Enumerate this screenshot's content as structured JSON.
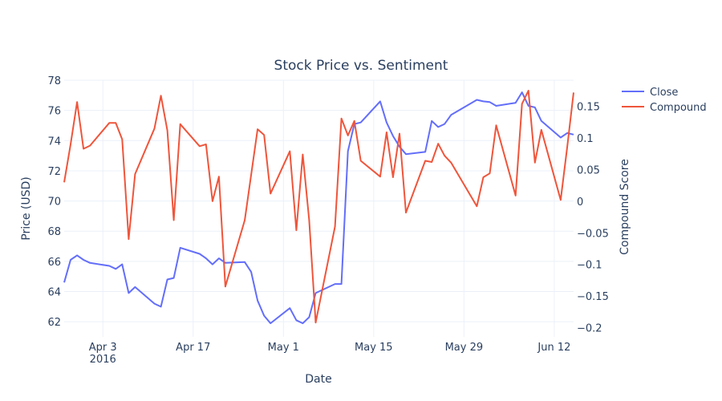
{
  "chart_data": {
    "type": "line",
    "title": "Stock Price vs. Sentiment",
    "xlabel": "Date",
    "ylabel_left": "Price (USD)",
    "ylabel_right": "Compound Score",
    "x_range": [
      "2016-03-28",
      "2016-06-15"
    ],
    "x_ticks": [
      {
        "date": "2016-04-03",
        "label": "Apr 3",
        "sublabel": "2016"
      },
      {
        "date": "2016-04-17",
        "label": "Apr 17",
        "sublabel": ""
      },
      {
        "date": "2016-05-01",
        "label": "May 1",
        "sublabel": ""
      },
      {
        "date": "2016-05-15",
        "label": "May 15",
        "sublabel": ""
      },
      {
        "date": "2016-05-29",
        "label": "May 29",
        "sublabel": ""
      },
      {
        "date": "2016-06-12",
        "label": "Jun 12",
        "sublabel": ""
      }
    ],
    "y_left": {
      "range": [
        61,
        78
      ],
      "ticks": [
        62,
        64,
        66,
        68,
        70,
        72,
        74,
        76,
        78
      ]
    },
    "y_right": {
      "range": [
        -0.2146,
        0.1915
      ],
      "ticks": [
        -0.2,
        -0.15,
        -0.1,
        -0.05,
        0,
        0.05,
        0.1,
        0.15
      ],
      "tick_labels": [
        "−0.2",
        "−0.15",
        "−0.1",
        "−0.05",
        "0",
        "0.05",
        "0.1",
        "0.15"
      ]
    },
    "grid": true,
    "legend_position": "top-right",
    "series": [
      {
        "name": "Close",
        "color": "#636efa",
        "axis": "left",
        "points": [
          [
            "2016-03-28",
            64.6
          ],
          [
            "2016-03-29",
            66.1
          ],
          [
            "2016-03-30",
            66.4
          ],
          [
            "2016-03-31",
            66.1
          ],
          [
            "2016-04-01",
            65.9
          ],
          [
            "2016-04-04",
            65.7
          ],
          [
            "2016-04-05",
            65.5
          ],
          [
            "2016-04-06",
            65.8
          ],
          [
            "2016-04-07",
            63.9
          ],
          [
            "2016-04-08",
            64.3
          ],
          [
            "2016-04-11",
            63.2
          ],
          [
            "2016-04-12",
            63.0
          ],
          [
            "2016-04-13",
            64.8
          ],
          [
            "2016-04-14",
            64.9
          ],
          [
            "2016-04-15",
            66.9
          ],
          [
            "2016-04-18",
            66.5
          ],
          [
            "2016-04-19",
            66.2
          ],
          [
            "2016-04-20",
            65.8
          ],
          [
            "2016-04-21",
            66.2
          ],
          [
            "2016-04-22",
            65.9
          ],
          [
            "2016-04-25",
            65.95
          ],
          [
            "2016-04-26",
            65.3
          ],
          [
            "2016-04-27",
            63.4
          ],
          [
            "2016-04-28",
            62.4
          ],
          [
            "2016-04-29",
            61.9
          ],
          [
            "2016-05-02",
            62.9
          ],
          [
            "2016-05-03",
            62.1
          ],
          [
            "2016-05-04",
            61.9
          ],
          [
            "2016-05-05",
            62.3
          ],
          [
            "2016-05-06",
            63.9
          ],
          [
            "2016-05-09",
            64.5
          ],
          [
            "2016-05-10",
            64.5
          ],
          [
            "2016-05-11",
            73.3
          ],
          [
            "2016-05-12",
            75.1
          ],
          [
            "2016-05-13",
            75.2
          ],
          [
            "2016-05-16",
            76.6
          ],
          [
            "2016-05-17",
            75.2
          ],
          [
            "2016-05-18",
            74.3
          ],
          [
            "2016-05-19",
            73.6
          ],
          [
            "2016-05-20",
            73.1
          ],
          [
            "2016-05-23",
            73.25
          ],
          [
            "2016-05-24",
            75.3
          ],
          [
            "2016-05-25",
            74.9
          ],
          [
            "2016-05-26",
            75.1
          ],
          [
            "2016-05-27",
            75.7
          ],
          [
            "2016-05-31",
            76.7
          ],
          [
            "2016-06-01",
            76.6
          ],
          [
            "2016-06-02",
            76.55
          ],
          [
            "2016-06-03",
            76.3
          ],
          [
            "2016-06-06",
            76.5
          ],
          [
            "2016-06-07",
            77.2
          ],
          [
            "2016-06-08",
            76.3
          ],
          [
            "2016-06-09",
            76.2
          ],
          [
            "2016-06-10",
            75.3
          ],
          [
            "2016-06-13",
            74.2
          ],
          [
            "2016-06-14",
            74.5
          ],
          [
            "2016-06-15",
            74.4
          ]
        ]
      },
      {
        "name": "Compound",
        "color": "#ef553b",
        "axis": "right",
        "points": [
          [
            "2016-03-28",
            0.03
          ],
          [
            "2016-03-29",
            0.09
          ],
          [
            "2016-03-30",
            0.157
          ],
          [
            "2016-03-31",
            0.083
          ],
          [
            "2016-04-01",
            0.088
          ],
          [
            "2016-04-04",
            0.124
          ],
          [
            "2016-04-05",
            0.124
          ],
          [
            "2016-04-06",
            0.098
          ],
          [
            "2016-04-07",
            -0.06
          ],
          [
            "2016-04-08",
            0.043
          ],
          [
            "2016-04-11",
            0.115
          ],
          [
            "2016-04-12",
            0.167
          ],
          [
            "2016-04-13",
            0.112
          ],
          [
            "2016-04-14",
            -0.03
          ],
          [
            "2016-04-15",
            0.122
          ],
          [
            "2016-04-18",
            0.087
          ],
          [
            "2016-04-19",
            0.09
          ],
          [
            "2016-04-20",
            0.0
          ],
          [
            "2016-04-21",
            0.039
          ],
          [
            "2016-04-22",
            -0.135
          ],
          [
            "2016-04-25",
            -0.03
          ],
          [
            "2016-04-27",
            0.114
          ],
          [
            "2016-04-28",
            0.105
          ],
          [
            "2016-04-29",
            0.012
          ],
          [
            "2016-05-02",
            0.079
          ],
          [
            "2016-05-03",
            -0.046
          ],
          [
            "2016-05-04",
            0.074
          ],
          [
            "2016-05-05",
            -0.03
          ],
          [
            "2016-05-06",
            -0.192
          ],
          [
            "2016-05-09",
            -0.04
          ],
          [
            "2016-05-10",
            0.131
          ],
          [
            "2016-05-11",
            0.104
          ],
          [
            "2016-05-12",
            0.127
          ],
          [
            "2016-05-13",
            0.064
          ],
          [
            "2016-05-16",
            0.039
          ],
          [
            "2016-05-17",
            0.109
          ],
          [
            "2016-05-18",
            0.038
          ],
          [
            "2016-05-19",
            0.107
          ],
          [
            "2016-05-20",
            -0.018
          ],
          [
            "2016-05-23",
            0.064
          ],
          [
            "2016-05-24",
            0.062
          ],
          [
            "2016-05-25",
            0.091
          ],
          [
            "2016-05-26",
            0.072
          ],
          [
            "2016-05-27",
            0.061
          ],
          [
            "2016-05-31",
            -0.008
          ],
          [
            "2016-06-01",
            0.038
          ],
          [
            "2016-06-02",
            0.044
          ],
          [
            "2016-06-03",
            0.12
          ],
          [
            "2016-06-06",
            0.009
          ],
          [
            "2016-06-07",
            0.154
          ],
          [
            "2016-06-08",
            0.175
          ],
          [
            "2016-06-09",
            0.061
          ],
          [
            "2016-06-10",
            0.113
          ],
          [
            "2016-06-13",
            0.002
          ],
          [
            "2016-06-14",
            0.085
          ],
          [
            "2016-06-15",
            0.172
          ]
        ]
      }
    ]
  }
}
